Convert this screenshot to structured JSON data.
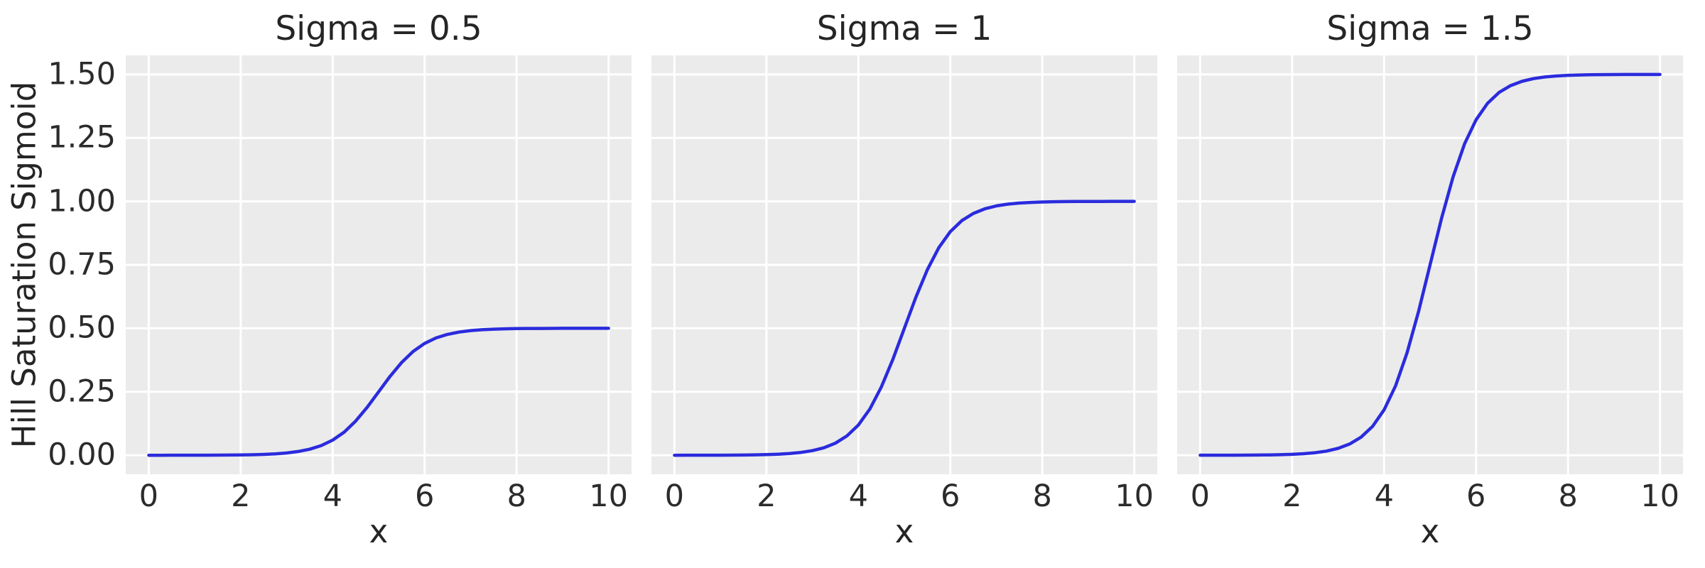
{
  "figure": {
    "background": "#ffffff",
    "panel_background": "#ebebeb",
    "grid_color": "#ffffff",
    "line_color": "#2b2bdd",
    "text_color": "#262626"
  },
  "chart_data": {
    "type": "line",
    "layout": "1 row x 3 columns, shared y axis",
    "title": "",
    "xlabel": "x",
    "ylabel": "Hill Saturation Sigmoid",
    "grid": true,
    "legend": false,
    "xlim": [
      -0.5,
      10.5
    ],
    "ylim": [
      -0.075,
      1.575
    ],
    "xticks": [
      0,
      2,
      4,
      6,
      8,
      10
    ],
    "xtick_labels": [
      "0",
      "2",
      "4",
      "6",
      "8",
      "10"
    ],
    "ytick_values": [
      0,
      0.25,
      0.5,
      0.75,
      1.0,
      1.25,
      1.5
    ],
    "ytick_labels": [
      "0.00",
      "0.25",
      "0.50",
      "0.75",
      "1.00",
      "1.25",
      "1.50"
    ],
    "x": [
      0,
      0.25,
      0.5,
      0.75,
      1,
      1.25,
      1.5,
      1.75,
      2,
      2.25,
      2.5,
      2.75,
      3,
      3.25,
      3.5,
      3.75,
      4,
      4.25,
      4.5,
      4.75,
      5,
      5.25,
      5.5,
      5.75,
      6,
      6.25,
      6.5,
      6.75,
      7,
      7.25,
      7.5,
      7.75,
      8,
      8.25,
      8.5,
      8.75,
      9,
      9.25,
      9.5,
      9.75,
      10
    ],
    "subplots": [
      {
        "title": "Sigma = 0.5",
        "sigma": 0.5,
        "y": [
          0.0,
          0.0,
          0.0001,
          0.0001,
          0.0002,
          0.0003,
          0.0005,
          0.0008,
          0.0012,
          0.002,
          0.0033,
          0.0055,
          0.009,
          0.0147,
          0.0237,
          0.0379,
          0.0596,
          0.0912,
          0.1345,
          0.1888,
          0.25,
          0.3112,
          0.3655,
          0.4088,
          0.4404,
          0.4621,
          0.4763,
          0.4853,
          0.491,
          0.4945,
          0.4967,
          0.498,
          0.4988,
          0.4993,
          0.4995,
          0.4997,
          0.4999,
          0.4999,
          0.5,
          0.5,
          0.5
        ]
      },
      {
        "title": "Sigma = 1",
        "sigma": 1,
        "y": [
          0.0,
          0.0001,
          0.0001,
          0.0002,
          0.0003,
          0.0006,
          0.0009,
          0.0015,
          0.0025,
          0.0041,
          0.0067,
          0.011,
          0.018,
          0.0293,
          0.0474,
          0.0759,
          0.1192,
          0.1824,
          0.2689,
          0.3775,
          0.5,
          0.6225,
          0.7311,
          0.8176,
          0.8808,
          0.9241,
          0.9526,
          0.9707,
          0.982,
          0.989,
          0.9933,
          0.9959,
          0.9975,
          0.9985,
          0.9991,
          0.9995,
          0.9997,
          0.9998,
          0.9999,
          0.9999,
          1.0
        ]
      },
      {
        "title": "Sigma = 1.5",
        "sigma": 1.5,
        "y": [
          0.0001,
          0.0001,
          0.0002,
          0.0003,
          0.0005,
          0.0008,
          0.0014,
          0.0023,
          0.0037,
          0.0061,
          0.01,
          0.0165,
          0.027,
          0.044,
          0.0712,
          0.1138,
          0.1788,
          0.2736,
          0.4034,
          0.5663,
          0.75,
          0.9337,
          1.0966,
          1.2264,
          1.3212,
          1.3862,
          1.4289,
          1.456,
          1.473,
          1.4835,
          1.49,
          1.4939,
          1.4963,
          1.4978,
          1.4986,
          1.4992,
          1.4995,
          1.4997,
          1.4998,
          1.4999,
          1.4999
        ]
      }
    ]
  }
}
